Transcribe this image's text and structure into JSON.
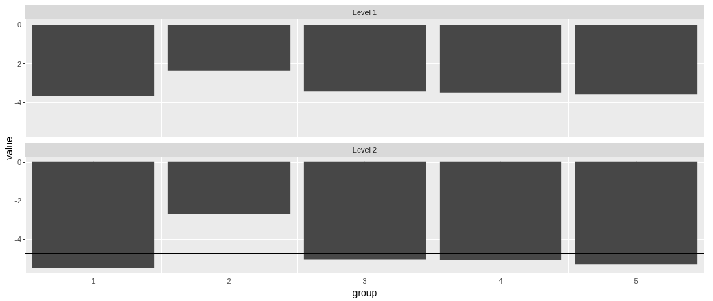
{
  "chart_data": [
    {
      "type": "bar",
      "title": "Level 1",
      "ylabel": "value",
      "categories": [
        "1",
        "2",
        "3",
        "4",
        "5"
      ],
      "series": [
        {
          "color": "#474747",
          "values": [
            -3.66,
            -2.36,
            -3.44,
            -3.49,
            -3.58
          ]
        }
      ],
      "ylim": [
        -5.76,
        0.28
      ],
      "yticks": [
        0,
        -2,
        -4
      ],
      "grid": true,
      "tick_labels": "y",
      "ref_lines": [
        {
          "axis": "y",
          "value": -3.3,
          "color": "#000000"
        }
      ]
    },
    {
      "type": "bar",
      "title": "Level 2",
      "xlabel": "group",
      "categories": [
        "1",
        "2",
        "3",
        "4",
        "5"
      ],
      "series": [
        {
          "color": "#474747",
          "values": [
            -5.51,
            -2.72,
            -5.06,
            -5.11,
            -5.3
          ]
        }
      ],
      "ylim": [
        -5.76,
        0.28
      ],
      "yticks": [
        0,
        -2,
        -4
      ],
      "grid": true,
      "ref_lines": [
        {
          "axis": "y",
          "value": -4.74,
          "color": "#000000"
        }
      ]
    }
  ]
}
